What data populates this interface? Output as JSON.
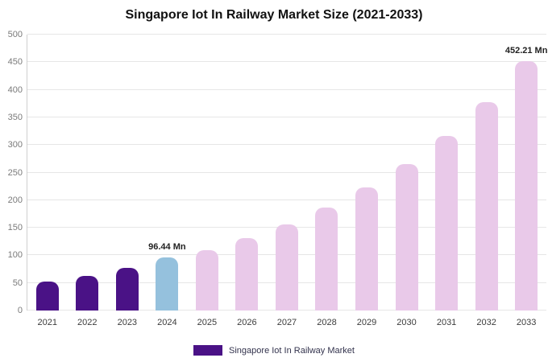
{
  "chart_data": {
    "type": "bar",
    "title": "Singapore Iot In Railway Market Size (2021-2033)",
    "categories": [
      "2021",
      "2022",
      "2023",
      "2024",
      "2025",
      "2026",
      "2027",
      "2028",
      "2029",
      "2030",
      "2031",
      "2032",
      "2033"
    ],
    "values": [
      52,
      62,
      77,
      96.44,
      110,
      131,
      156,
      187,
      223,
      266,
      316,
      377,
      452.21
    ],
    "unit": "Mn",
    "ylim": [
      0,
      500
    ],
    "ytick_step": 50,
    "grid": true,
    "colors": [
      "#4a1286",
      "#4a1286",
      "#4a1286",
      "#95c1dd",
      "#e9c9e9",
      "#e9c9e9",
      "#e9c9e9",
      "#e9c9e9",
      "#e9c9e9",
      "#e9c9e9",
      "#e9c9e9",
      "#e9c9e9",
      "#e9c9e9"
    ],
    "annotations": [
      {
        "category": "2024",
        "text": "96.44 Mn"
      },
      {
        "category": "2033",
        "text": "452.21 Mn"
      }
    ],
    "legend": {
      "label": "Singapore Iot In Railway Market",
      "color": "#4a1286",
      "position": "bottom"
    }
  }
}
